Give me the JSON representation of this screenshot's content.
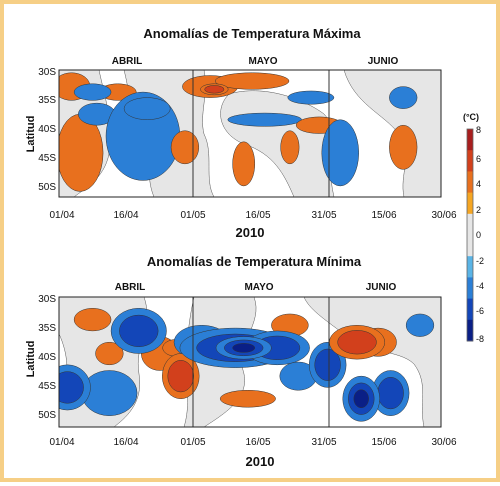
{
  "chart_data": [
    {
      "type": "heatmap",
      "title": "Anomalías de Temperatura Máxima",
      "ylabel": "Latitud",
      "xlabel": "2010",
      "months": [
        "ABRIL",
        "MAYO",
        "JUNIO"
      ],
      "x_ticks": [
        "01/04",
        "16/04",
        "01/05",
        "16/05",
        "31/05",
        "15/06",
        "30/06"
      ],
      "y_ticks": [
        "30S",
        "35S",
        "40S",
        "45S",
        "50S"
      ],
      "ylim": [
        -53,
        -30
      ],
      "grid": false,
      "blobs": [
        {
          "day": 5,
          "lat": -45,
          "dd": 2.5,
          "dl": 7,
          "anom": 2
        },
        {
          "day": 3,
          "lat": -33,
          "dd": 2,
          "dl": 2.5,
          "anom": 2
        },
        {
          "day": 14,
          "lat": -34,
          "dd": 2,
          "dl": 1.5,
          "anom": 2
        },
        {
          "day": 8,
          "lat": -34,
          "dd": 2,
          "dl": 1.5,
          "anom": -2
        },
        {
          "day": 9,
          "lat": -38,
          "dd": 2,
          "dl": 2,
          "anom": -2
        },
        {
          "day": 20,
          "lat": -42,
          "dd": 4,
          "dl": 8,
          "anom": -2
        },
        {
          "day": 21,
          "lat": -37,
          "dd": 2.5,
          "dl": 2,
          "anom": -2
        },
        {
          "day": 30,
          "lat": -44,
          "dd": 1.5,
          "dl": 3,
          "anom": 2
        },
        {
          "day": 36,
          "lat": -33,
          "dd": 3,
          "dl": 2,
          "anom": 2
        },
        {
          "day": 37,
          "lat": -33.5,
          "dd": 1.5,
          "dl": 1,
          "anom": 4.5
        },
        {
          "day": 46,
          "lat": -32,
          "dd": 4,
          "dl": 1.5,
          "anom": 2
        },
        {
          "day": 49,
          "lat": -39,
          "dd": 4,
          "dl": 1.2,
          "anom": -2
        },
        {
          "day": 44,
          "lat": -47,
          "dd": 1.2,
          "dl": 4,
          "anom": 2
        },
        {
          "day": 55,
          "lat": -44,
          "dd": 1,
          "dl": 3,
          "anom": 2
        },
        {
          "day": 60,
          "lat": -35,
          "dd": 2.5,
          "dl": 1.2,
          "anom": -2
        },
        {
          "day": 62,
          "lat": -40,
          "dd": 2.5,
          "dl": 1.5,
          "anom": 2
        },
        {
          "day": 67,
          "lat": -45,
          "dd": 2,
          "dl": 6,
          "anom": -2
        },
        {
          "day": 82,
          "lat": -44,
          "dd": 1.5,
          "dl": 4,
          "anom": 2
        },
        {
          "day": 82,
          "lat": -35,
          "dd": 1.5,
          "dl": 2,
          "anom": -2
        }
      ]
    },
    {
      "type": "heatmap",
      "title": "Anomalías de Temperatura Mínima",
      "ylabel": "Latitud",
      "xlabel": "2010",
      "months": [
        "ABRIL",
        "MAYO",
        "JUNIO"
      ],
      "x_ticks": [
        "01/04",
        "16/04",
        "01/05",
        "16/05",
        "31/05",
        "15/06",
        "30/06"
      ],
      "y_ticks": [
        "30S",
        "35S",
        "40S",
        "45S",
        "50S"
      ],
      "ylim": [
        -53,
        -30
      ],
      "grid": false,
      "blobs": [
        {
          "day": 2,
          "lat": -46,
          "dd": 2.5,
          "dl": 4,
          "anom": -4
        },
        {
          "day": 8,
          "lat": -34,
          "dd": 2,
          "dl": 2,
          "anom": 2
        },
        {
          "day": 12,
          "lat": -40,
          "dd": 1.5,
          "dl": 2,
          "anom": 2
        },
        {
          "day": 12,
          "lat": -47,
          "dd": 3,
          "dl": 4,
          "anom": -2
        },
        {
          "day": 19,
          "lat": -36,
          "dd": 3,
          "dl": 4,
          "anom": -4
        },
        {
          "day": 24,
          "lat": -40,
          "dd": 2,
          "dl": 3,
          "anom": 2
        },
        {
          "day": 29,
          "lat": -44,
          "dd": 2,
          "dl": 4,
          "anom": 4
        },
        {
          "day": 28,
          "lat": -39,
          "dd": 1.5,
          "dl": 1.5,
          "anom": 2
        },
        {
          "day": 34,
          "lat": -38,
          "dd": 3,
          "dl": 3,
          "anom": -2
        },
        {
          "day": 42,
          "lat": -39,
          "dd": 6,
          "dl": 3.5,
          "anom": -4
        },
        {
          "day": 44,
          "lat": -39,
          "dd": 3,
          "dl": 2,
          "anom": -6
        },
        {
          "day": 52,
          "lat": -39,
          "dd": 3.5,
          "dl": 3,
          "anom": -4
        },
        {
          "day": 57,
          "lat": -44,
          "dd": 2,
          "dl": 2.5,
          "anom": -2
        },
        {
          "day": 45,
          "lat": -48,
          "dd": 3,
          "dl": 1.5,
          "anom": 2
        },
        {
          "day": 55,
          "lat": -35,
          "dd": 2,
          "dl": 2,
          "anom": 2
        },
        {
          "day": 64,
          "lat": -42,
          "dd": 2,
          "dl": 4,
          "anom": -4
        },
        {
          "day": 71,
          "lat": -38,
          "dd": 3,
          "dl": 3,
          "anom": 4
        },
        {
          "day": 76,
          "lat": -38,
          "dd": 2,
          "dl": 2.5,
          "anom": 2
        },
        {
          "day": 72,
          "lat": -48,
          "dd": 2,
          "dl": 4,
          "anom": -6
        },
        {
          "day": 79,
          "lat": -47,
          "dd": 2,
          "dl": 4,
          "anom": -4
        },
        {
          "day": 86,
          "lat": -35,
          "dd": 1.5,
          "dl": 2,
          "anom": -2
        }
      ]
    }
  ],
  "colorbar": {
    "unit": "(°C)",
    "ticks": [
      "8",
      "6",
      "4",
      "2",
      "0",
      "-2",
      "-4",
      "-6",
      "-8"
    ],
    "colors_positive": [
      "#f5a623",
      "#e8701e",
      "#d2401c",
      "#a81e1e"
    ],
    "colors_negative": [
      "#5ab4e6",
      "#2b7fd6",
      "#1346b8",
      "#0a1f86"
    ],
    "zero_color": "#e6e6e6"
  }
}
